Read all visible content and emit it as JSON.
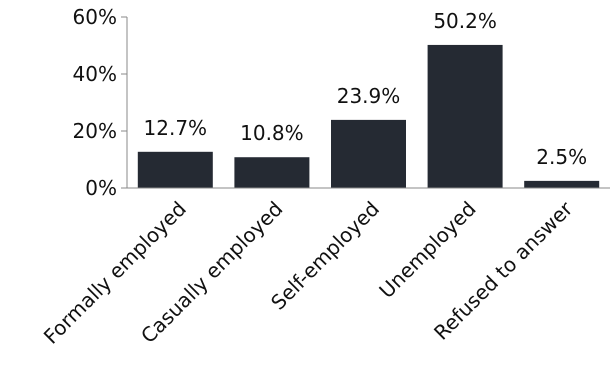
{
  "chart_data": {
    "type": "bar",
    "title": "",
    "xlabel": "",
    "ylabel": "",
    "categories": [
      "Formally employed",
      "Casually employed",
      "Self-employed",
      "Unemployed",
      "Refused to answer"
    ],
    "values": [
      12.7,
      10.8,
      23.9,
      50.2,
      2.5
    ],
    "data_labels": [
      "12.7%",
      "10.8%",
      "23.9%",
      "50.2%",
      "2.5%"
    ],
    "ylim": [
      0,
      60
    ],
    "yticks": [
      0,
      20,
      40,
      60
    ],
    "ytick_labels": [
      "0%",
      "20%",
      "40%",
      "60%"
    ],
    "grid": false,
    "legend": "none",
    "bar_color": "#252a33"
  }
}
